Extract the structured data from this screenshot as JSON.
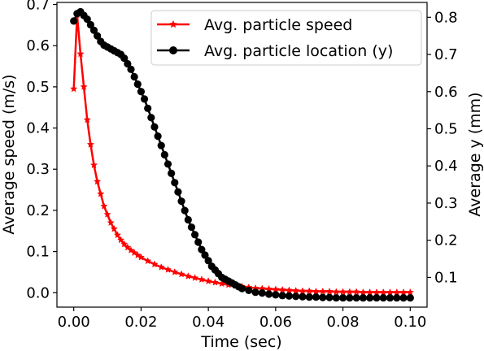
{
  "chart_data": {
    "type": "line",
    "xlabel": "Time (sec)",
    "ylabel": "Average speed (m/s)",
    "y2label": "Average y (mm)",
    "xlim": [
      -0.005,
      0.105
    ],
    "ylim": [
      -0.035,
      0.705
    ],
    "y2lim": [
      0.02,
      0.84
    ],
    "xticks": [
      0.0,
      0.02,
      0.04,
      0.06,
      0.08,
      0.1
    ],
    "xtick_labels": [
      "0.00",
      "0.02",
      "0.04",
      "0.06",
      "0.08",
      "0.10"
    ],
    "yticks": [
      0.0,
      0.1,
      0.2,
      0.3,
      0.4,
      0.5,
      0.6,
      0.7
    ],
    "ytick_labels": [
      "0.0",
      "0.1",
      "0.2",
      "0.3",
      "0.4",
      "0.5",
      "0.6",
      "0.7"
    ],
    "y2ticks": [
      0.1,
      0.2,
      0.3,
      0.4,
      0.5,
      0.6,
      0.7,
      0.8
    ],
    "y2tick_labels": [
      "0.1",
      "0.2",
      "0.3",
      "0.4",
      "0.5",
      "0.6",
      "0.7",
      "0.8"
    ],
    "grid": false,
    "legend_position": "upper right",
    "series": [
      {
        "name": "Avg. particle speed",
        "axis": "left",
        "color": "#ff0000",
        "marker": "star",
        "x": [
          0.0,
          0.001,
          0.002,
          0.003,
          0.004,
          0.005,
          0.006,
          0.007,
          0.008,
          0.009,
          0.01,
          0.011,
          0.012,
          0.013,
          0.014,
          0.015,
          0.016,
          0.017,
          0.018,
          0.019,
          0.02,
          0.022,
          0.024,
          0.026,
          0.028,
          0.03,
          0.032,
          0.034,
          0.036,
          0.038,
          0.04,
          0.042,
          0.044,
          0.046,
          0.048,
          0.05,
          0.052,
          0.054,
          0.056,
          0.058,
          0.06,
          0.062,
          0.064,
          0.066,
          0.068,
          0.07,
          0.072,
          0.074,
          0.076,
          0.078,
          0.08,
          0.082,
          0.084,
          0.086,
          0.088,
          0.09,
          0.092,
          0.094,
          0.096,
          0.098,
          0.1
        ],
        "y": [
          0.495,
          0.675,
          0.58,
          0.5,
          0.42,
          0.36,
          0.31,
          0.27,
          0.24,
          0.21,
          0.19,
          0.17,
          0.155,
          0.14,
          0.128,
          0.118,
          0.11,
          0.103,
          0.097,
          0.091,
          0.086,
          0.077,
          0.069,
          0.062,
          0.056,
          0.05,
          0.045,
          0.04,
          0.036,
          0.032,
          0.028,
          0.025,
          0.022,
          0.019,
          0.017,
          0.015,
          0.013,
          0.011,
          0.01,
          0.009,
          0.008,
          0.007,
          0.006,
          0.005,
          0.004,
          0.004,
          0.003,
          0.003,
          0.003,
          0.002,
          0.002,
          0.002,
          0.002,
          0.001,
          0.001,
          0.001,
          0.001,
          0.001,
          0.001,
          0.001,
          0.001
        ]
      },
      {
        "name": "Avg. particle location (y)",
        "axis": "right",
        "color": "#000000",
        "marker": "circle",
        "x": [
          0.0,
          0.001,
          0.002,
          0.003,
          0.004,
          0.005,
          0.006,
          0.007,
          0.008,
          0.009,
          0.01,
          0.011,
          0.012,
          0.013,
          0.014,
          0.015,
          0.016,
          0.017,
          0.018,
          0.019,
          0.02,
          0.021,
          0.022,
          0.023,
          0.024,
          0.025,
          0.026,
          0.027,
          0.028,
          0.029,
          0.03,
          0.031,
          0.032,
          0.033,
          0.034,
          0.035,
          0.036,
          0.037,
          0.038,
          0.039,
          0.04,
          0.041,
          0.042,
          0.043,
          0.044,
          0.045,
          0.046,
          0.047,
          0.048,
          0.049,
          0.05,
          0.052,
          0.054,
          0.056,
          0.058,
          0.06,
          0.062,
          0.064,
          0.066,
          0.068,
          0.07,
          0.072,
          0.074,
          0.076,
          0.078,
          0.08,
          0.082,
          0.084,
          0.086,
          0.088,
          0.09,
          0.092,
          0.094,
          0.096,
          0.098,
          0.1
        ],
        "y": [
          0.79,
          0.81,
          0.815,
          0.805,
          0.795,
          0.78,
          0.765,
          0.75,
          0.735,
          0.725,
          0.72,
          0.715,
          0.71,
          0.705,
          0.7,
          0.69,
          0.675,
          0.66,
          0.64,
          0.62,
          0.6,
          0.58,
          0.555,
          0.53,
          0.505,
          0.48,
          0.455,
          0.43,
          0.405,
          0.38,
          0.355,
          0.33,
          0.305,
          0.28,
          0.255,
          0.235,
          0.215,
          0.195,
          0.175,
          0.16,
          0.145,
          0.13,
          0.12,
          0.11,
          0.1,
          0.095,
          0.09,
          0.085,
          0.08,
          0.075,
          0.07,
          0.065,
          0.06,
          0.058,
          0.055,
          0.053,
          0.051,
          0.05,
          0.049,
          0.048,
          0.047,
          0.047,
          0.046,
          0.046,
          0.045,
          0.045,
          0.045,
          0.045,
          0.045,
          0.045,
          0.045,
          0.045,
          0.045,
          0.045,
          0.045,
          0.045
        ]
      }
    ]
  }
}
